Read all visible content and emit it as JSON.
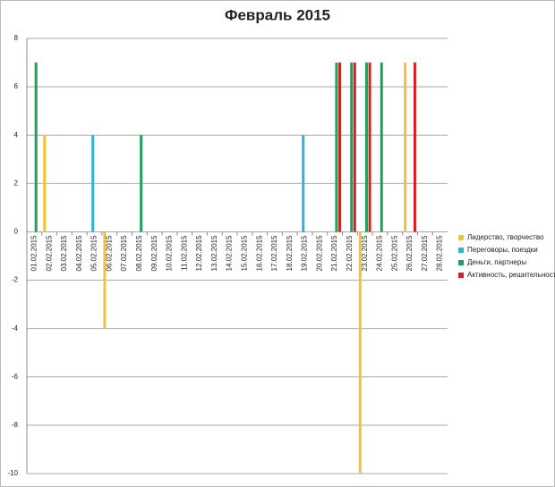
{
  "chart_data": {
    "type": "bar",
    "title": "Февраль 2015",
    "categories": [
      "01.02.2015",
      "02.02.2015",
      "03.02.2015",
      "04.02.2015",
      "05.02.2015",
      "06.02.2015",
      "07.02.2015",
      "08.02.2015",
      "09.02.2015",
      "10.02.2015",
      "11.02.2015",
      "12.02.2015",
      "13.02.2015",
      "14.02.2015",
      "15.02.2015",
      "16.02.2015",
      "17.02.2015",
      "18.02.2015",
      "19.02.2015",
      "20.02.2015",
      "21.02.2015",
      "22.02.2015",
      "23.02.2015",
      "24.02.2015",
      "25.02.2015",
      "26.02.2015",
      "27.02.2015",
      "28.02.2015"
    ],
    "series": [
      {
        "name": "Лидерство, творчество",
        "color": "#f0c23a",
        "values": [
          0,
          4,
          0,
          0,
          0,
          -4,
          0,
          0,
          0,
          0,
          0,
          0,
          0,
          0,
          0,
          0,
          0,
          0,
          0,
          0,
          0,
          0,
          -10,
          0,
          0,
          7,
          0,
          0
        ]
      },
      {
        "name": "Переговоры, поездки",
        "color": "#2fb2d6",
        "values": [
          0,
          0,
          0,
          0,
          4,
          0,
          0,
          0,
          0,
          0,
          0,
          0,
          0,
          0,
          0,
          0,
          0,
          0,
          4,
          0,
          0,
          0,
          0,
          0,
          0,
          0,
          0,
          0
        ]
      },
      {
        "name": "Деньги, партнеры",
        "color": "#1f9e5c",
        "values": [
          7,
          0,
          0,
          0,
          0,
          0,
          0,
          4,
          0,
          0,
          0,
          0,
          0,
          0,
          0,
          0,
          0,
          0,
          0,
          0,
          7,
          7,
          7,
          7,
          0,
          0,
          0,
          0
        ]
      },
      {
        "name": "Активность, решительность",
        "color": "#d42222",
        "values": [
          0,
          0,
          0,
          0,
          0,
          0,
          0,
          0,
          0,
          0,
          0,
          0,
          0,
          0,
          0,
          0,
          0,
          0,
          0,
          0,
          7,
          7,
          7,
          0,
          0,
          7,
          0,
          0
        ]
      }
    ],
    "ylim": [
      -10,
      8
    ],
    "yticks": [
      -10,
      -8,
      -6,
      -4,
      -2,
      0,
      2,
      4,
      6,
      8
    ],
    "grid": true,
    "legend": "right"
  }
}
